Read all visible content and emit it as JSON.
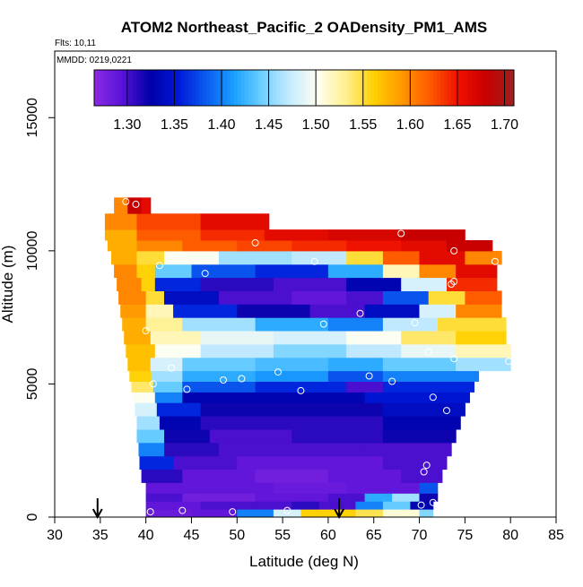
{
  "chart_data": {
    "type": "heatmap",
    "title": "ATOM2 Northeast_Pacific_2 OADensity_PM1_AMS",
    "subtitle_flights": "Flts: 10,11",
    "subtitle_dates": "MMDD: 0219,0221",
    "xlabel": "Latitude (deg N)",
    "ylabel": "Altitude (m)",
    "xlim": [
      30,
      85
    ],
    "ylim": [
      0,
      17500
    ],
    "xticks": [
      "30",
      "35",
      "40",
      "45",
      "50",
      "55",
      "60",
      "65",
      "70",
      "75",
      "80",
      "85"
    ],
    "yticks": [
      "0",
      "5000",
      "10000",
      "15000"
    ],
    "colorbar": {
      "min": 1.265,
      "max": 1.71,
      "ticks": [
        "1.30",
        "1.35",
        "1.40",
        "1.45",
        "1.50",
        "1.55",
        "1.60",
        "1.65",
        "1.70"
      ],
      "colors": [
        "#8a2be2",
        "#5a12d8",
        "#0000a8",
        "#0018d8",
        "#0a5cf0",
        "#1aa0ff",
        "#6ed0ff",
        "#c8ecff",
        "#fffff0",
        "#fff090",
        "#ffd000",
        "#ff9800",
        "#ff5a00",
        "#f01000",
        "#c80000",
        "#a02020"
      ]
    },
    "arrows_latitude": [
      34.7,
      61.2
    ],
    "bands": [
      {
        "alt0": 0,
        "alt1": 300,
        "cells": [
          [
            40,
            45,
            1.285
          ],
          [
            45,
            50,
            1.29
          ],
          [
            50,
            54,
            1.4
          ],
          [
            54,
            57,
            1.48
          ],
          [
            57,
            60,
            1.56
          ],
          [
            60,
            63,
            1.56
          ],
          [
            63,
            66,
            1.545
          ],
          [
            66,
            70,
            1.51
          ],
          [
            70,
            71.5,
            1.45
          ]
        ]
      },
      {
        "alt0": 300,
        "alt1": 600,
        "cells": [
          [
            40,
            46,
            1.29
          ],
          [
            46,
            52,
            1.3
          ],
          [
            52,
            56,
            1.3
          ],
          [
            56,
            59,
            1.31
          ],
          [
            59,
            63,
            1.3
          ],
          [
            63,
            66,
            1.4
          ],
          [
            66,
            69,
            1.44
          ],
          [
            69,
            71.5,
            1.33
          ]
        ]
      },
      {
        "alt0": 600,
        "alt1": 900,
        "cells": [
          [
            40,
            44,
            1.3
          ],
          [
            44,
            52,
            1.28
          ],
          [
            52,
            60,
            1.29
          ],
          [
            60,
            64,
            1.3
          ],
          [
            64,
            67,
            1.42
          ],
          [
            67,
            70,
            1.46
          ],
          [
            70,
            72,
            1.32
          ]
        ]
      },
      {
        "alt0": 900,
        "alt1": 1300,
        "cells": [
          [
            40,
            46,
            1.29
          ],
          [
            46,
            54,
            1.29
          ],
          [
            54,
            62,
            1.285
          ],
          [
            62,
            70,
            1.29
          ],
          [
            70,
            72,
            1.38
          ]
        ]
      },
      {
        "alt0": 1300,
        "alt1": 1800,
        "cells": [
          [
            39.5,
            44,
            1.31
          ],
          [
            44,
            52,
            1.29
          ],
          [
            52,
            60,
            1.28
          ],
          [
            60,
            68,
            1.29
          ],
          [
            68,
            72.5,
            1.3
          ]
        ]
      },
      {
        "alt0": 1800,
        "alt1": 2300,
        "cells": [
          [
            39.3,
            43,
            1.36
          ],
          [
            43,
            50,
            1.3
          ],
          [
            50,
            58,
            1.29
          ],
          [
            58,
            66,
            1.29
          ],
          [
            66,
            73,
            1.3
          ]
        ]
      },
      {
        "alt0": 2300,
        "alt1": 2800,
        "cells": [
          [
            39.2,
            42,
            1.4
          ],
          [
            42,
            48,
            1.31
          ],
          [
            48,
            56,
            1.3
          ],
          [
            56,
            64,
            1.3
          ],
          [
            64,
            73.5,
            1.3
          ]
        ]
      },
      {
        "alt0": 2800,
        "alt1": 3300,
        "cells": [
          [
            39,
            42,
            1.44
          ],
          [
            42,
            47,
            1.32
          ],
          [
            47,
            56,
            1.3
          ],
          [
            56,
            66,
            1.31
          ],
          [
            66,
            74,
            1.32
          ]
        ]
      },
      {
        "alt0": 3300,
        "alt1": 3800,
        "cells": [
          [
            39,
            41.5,
            1.46
          ],
          [
            41.5,
            46,
            1.33
          ],
          [
            46,
            56,
            1.31
          ],
          [
            56,
            66,
            1.31
          ],
          [
            66,
            74.5,
            1.33
          ]
        ]
      },
      {
        "alt0": 3800,
        "alt1": 4300,
        "cells": [
          [
            38.8,
            41.2,
            1.48
          ],
          [
            41.2,
            46,
            1.36
          ],
          [
            46,
            56,
            1.32
          ],
          [
            56,
            66,
            1.32
          ],
          [
            66,
            75,
            1.34
          ]
        ]
      },
      {
        "alt0": 4300,
        "alt1": 4700,
        "cells": [
          [
            38.6,
            41,
            1.5
          ],
          [
            41,
            44,
            1.4
          ],
          [
            44,
            54,
            1.33
          ],
          [
            54,
            64,
            1.33
          ],
          [
            64,
            75.5,
            1.35
          ]
        ]
      },
      {
        "alt0": 4700,
        "alt1": 5100,
        "cells": [
          [
            38.4,
            40.8,
            1.54
          ],
          [
            40.8,
            44,
            1.44
          ],
          [
            44,
            52,
            1.38
          ],
          [
            52,
            62,
            1.36
          ],
          [
            62,
            66,
            1.3
          ],
          [
            66,
            76,
            1.36
          ]
        ]
      },
      {
        "alt0": 5100,
        "alt1": 5500,
        "cells": [
          [
            38.2,
            40.6,
            1.56
          ],
          [
            40.6,
            44,
            1.46
          ],
          [
            44,
            52,
            1.42
          ],
          [
            52,
            60,
            1.41
          ],
          [
            60,
            66,
            1.38
          ],
          [
            66,
            76.5,
            1.4
          ]
        ]
      },
      {
        "alt0": 5500,
        "alt1": 6000,
        "cells": [
          [
            38,
            40.5,
            1.57
          ],
          [
            40.5,
            44,
            1.48
          ],
          [
            44,
            52,
            1.44
          ],
          [
            52,
            60,
            1.43
          ],
          [
            60,
            66,
            1.42
          ],
          [
            66,
            74,
            1.44
          ],
          [
            74,
            80,
            1.46
          ]
        ]
      },
      {
        "alt0": 6000,
        "alt1": 6500,
        "cells": [
          [
            37.8,
            41,
            1.57
          ],
          [
            41,
            46,
            1.5
          ],
          [
            46,
            54,
            1.47
          ],
          [
            54,
            62,
            1.45
          ],
          [
            62,
            68,
            1.47
          ],
          [
            68,
            74,
            1.49
          ],
          [
            74,
            80,
            1.52
          ]
        ]
      },
      {
        "alt0": 6500,
        "alt1": 7000,
        "cells": [
          [
            37.6,
            40.5,
            1.58
          ],
          [
            40.5,
            46,
            1.52
          ],
          [
            46,
            54,
            1.49
          ],
          [
            54,
            62,
            1.48
          ],
          [
            62,
            68,
            1.5
          ],
          [
            68,
            74,
            1.54
          ],
          [
            74,
            79.5,
            1.56
          ]
        ]
      },
      {
        "alt0": 7000,
        "alt1": 7500,
        "cells": [
          [
            37.4,
            40,
            1.58
          ],
          [
            40,
            44,
            1.53
          ],
          [
            44,
            52,
            1.46
          ],
          [
            52,
            60,
            1.42
          ],
          [
            60,
            66,
            1.4
          ],
          [
            66,
            72,
            1.47
          ],
          [
            72,
            79.5,
            1.55
          ]
        ]
      },
      {
        "alt0": 7500,
        "alt1": 8000,
        "cells": [
          [
            37.2,
            40,
            1.59
          ],
          [
            40,
            43,
            1.52
          ],
          [
            43,
            50,
            1.36
          ],
          [
            50,
            58,
            1.32
          ],
          [
            58,
            64,
            1.3
          ],
          [
            64,
            70,
            1.34
          ],
          [
            70,
            74,
            1.48
          ],
          [
            74,
            79,
            1.6
          ]
        ]
      },
      {
        "alt0": 8000,
        "alt1": 8500,
        "cells": [
          [
            37,
            40,
            1.6
          ],
          [
            40,
            42,
            1.55
          ],
          [
            42,
            48,
            1.34
          ],
          [
            48,
            56,
            1.3
          ],
          [
            56,
            62,
            1.29
          ],
          [
            62,
            66,
            1.3
          ],
          [
            66,
            71,
            1.38
          ],
          [
            71,
            75,
            1.55
          ],
          [
            75,
            79,
            1.62
          ]
        ]
      },
      {
        "alt0": 8500,
        "alt1": 9000,
        "cells": [
          [
            36.8,
            39.5,
            1.6
          ],
          [
            39.5,
            41,
            1.56
          ],
          [
            41,
            46,
            1.36
          ],
          [
            46,
            54,
            1.31
          ],
          [
            54,
            62,
            1.3
          ],
          [
            62,
            68,
            1.33
          ],
          [
            68,
            73,
            1.48
          ],
          [
            73,
            78.5,
            1.64
          ]
        ]
      },
      {
        "alt0": 9000,
        "alt1": 9500,
        "cells": [
          [
            36.5,
            39,
            1.6
          ],
          [
            39,
            41,
            1.56
          ],
          [
            41,
            45,
            1.44
          ],
          [
            45,
            52,
            1.38
          ],
          [
            52,
            60,
            1.36
          ],
          [
            60,
            66,
            1.42
          ],
          [
            66,
            70,
            1.52
          ],
          [
            70,
            74,
            1.6
          ],
          [
            74,
            78.5,
            1.66
          ]
        ]
      },
      {
        "alt0": 9500,
        "alt1": 10000,
        "cells": [
          [
            36.2,
            39,
            1.58
          ],
          [
            39,
            42,
            1.55
          ],
          [
            42,
            48,
            1.5
          ],
          [
            48,
            56,
            1.46
          ],
          [
            56,
            62,
            1.47
          ],
          [
            62,
            66,
            1.55
          ],
          [
            66,
            70,
            1.62
          ],
          [
            70,
            75,
            1.66
          ],
          [
            75,
            79,
            1.6
          ]
        ]
      },
      {
        "alt0": 10000,
        "alt1": 10400,
        "cells": [
          [
            35.8,
            39,
            1.58
          ],
          [
            39,
            44,
            1.6
          ],
          [
            44,
            50,
            1.62
          ],
          [
            50,
            56,
            1.63
          ],
          [
            56,
            62,
            1.64
          ],
          [
            62,
            68,
            1.65
          ],
          [
            68,
            73,
            1.66
          ],
          [
            73,
            78,
            1.68
          ]
        ]
      },
      {
        "alt0": 10400,
        "alt1": 10800,
        "cells": [
          [
            35.5,
            39,
            1.58
          ],
          [
            39,
            46,
            1.62
          ],
          [
            46,
            53,
            1.64
          ],
          [
            53,
            60,
            1.66
          ],
          [
            60,
            68,
            1.67
          ],
          [
            68,
            75,
            1.68
          ]
        ]
      },
      {
        "alt0": 10800,
        "alt1": 11400,
        "cells": [
          [
            35.5,
            39,
            1.6
          ],
          [
            39,
            46,
            1.63
          ],
          [
            46,
            53.5,
            1.66
          ]
        ]
      },
      {
        "alt0": 11400,
        "alt1": 12000,
        "cells": [
          [
            36.5,
            38,
            1.6
          ],
          [
            38,
            39.5,
            1.68
          ],
          [
            39.5,
            40.5,
            1.66
          ]
        ]
      }
    ],
    "sample_points": [
      [
        40.5,
        200
      ],
      [
        44,
        250
      ],
      [
        49.5,
        200
      ],
      [
        55.5,
        250
      ],
      [
        70.2,
        450
      ],
      [
        71.5,
        550
      ],
      [
        70.5,
        1700
      ],
      [
        70.8,
        1950
      ],
      [
        73,
        4000
      ],
      [
        71.5,
        4500
      ],
      [
        76.5,
        4800
      ],
      [
        67,
        5100
      ],
      [
        64.5,
        5300
      ],
      [
        44.5,
        4800
      ],
      [
        48.5,
        5150
      ],
      [
        50.5,
        5200
      ],
      [
        54.5,
        5450
      ],
      [
        57,
        4750
      ],
      [
        40.8,
        5000
      ],
      [
        42.8,
        5600
      ],
      [
        40,
        7000
      ],
      [
        59.5,
        7250
      ],
      [
        63.5,
        7650
      ],
      [
        69.5,
        7300
      ],
      [
        71,
        6200
      ],
      [
        73.8,
        5950
      ],
      [
        79.8,
        5850
      ],
      [
        46.5,
        9150
      ],
      [
        41.5,
        9450
      ],
      [
        58.5,
        9600
      ],
      [
        73.5,
        8750
      ],
      [
        73.8,
        8850
      ],
      [
        78.3,
        9600
      ],
      [
        73.8,
        10000
      ],
      [
        68,
        10650
      ],
      [
        52,
        10300
      ],
      [
        37.8,
        11850
      ],
      [
        38.9,
        11750
      ]
    ]
  }
}
